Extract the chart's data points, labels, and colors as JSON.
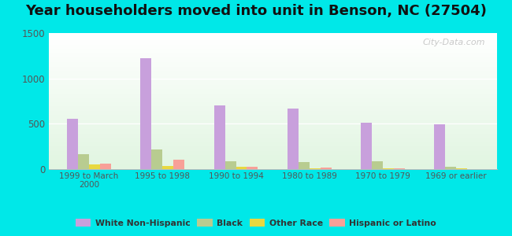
{
  "title": "Year householders moved into unit in Benson, NC (27504)",
  "categories": [
    "1999 to March\n2000",
    "1995 to 1998",
    "1990 to 1994",
    "1980 to 1989",
    "1970 to 1979",
    "1969 or earlier"
  ],
  "series": {
    "White Non-Hispanic": [
      550,
      1220,
      700,
      665,
      510,
      490
    ],
    "Black": [
      165,
      215,
      80,
      70,
      80,
      20
    ],
    "Other Race": [
      45,
      30,
      20,
      5,
      5,
      5
    ],
    "Hispanic or Latino": [
      60,
      100,
      25,
      10,
      5,
      0
    ]
  },
  "colors": {
    "White Non-Hispanic": "#c8a0dc",
    "Black": "#b8cc90",
    "Other Race": "#e8d840",
    "Hispanic or Latino": "#f8a098"
  },
  "ylim": [
    0,
    1500
  ],
  "yticks": [
    0,
    500,
    1000,
    1500
  ],
  "background_color": "#00e8e8",
  "watermark": "City-Data.com",
  "title_fontsize": 13,
  "bar_width": 0.15
}
